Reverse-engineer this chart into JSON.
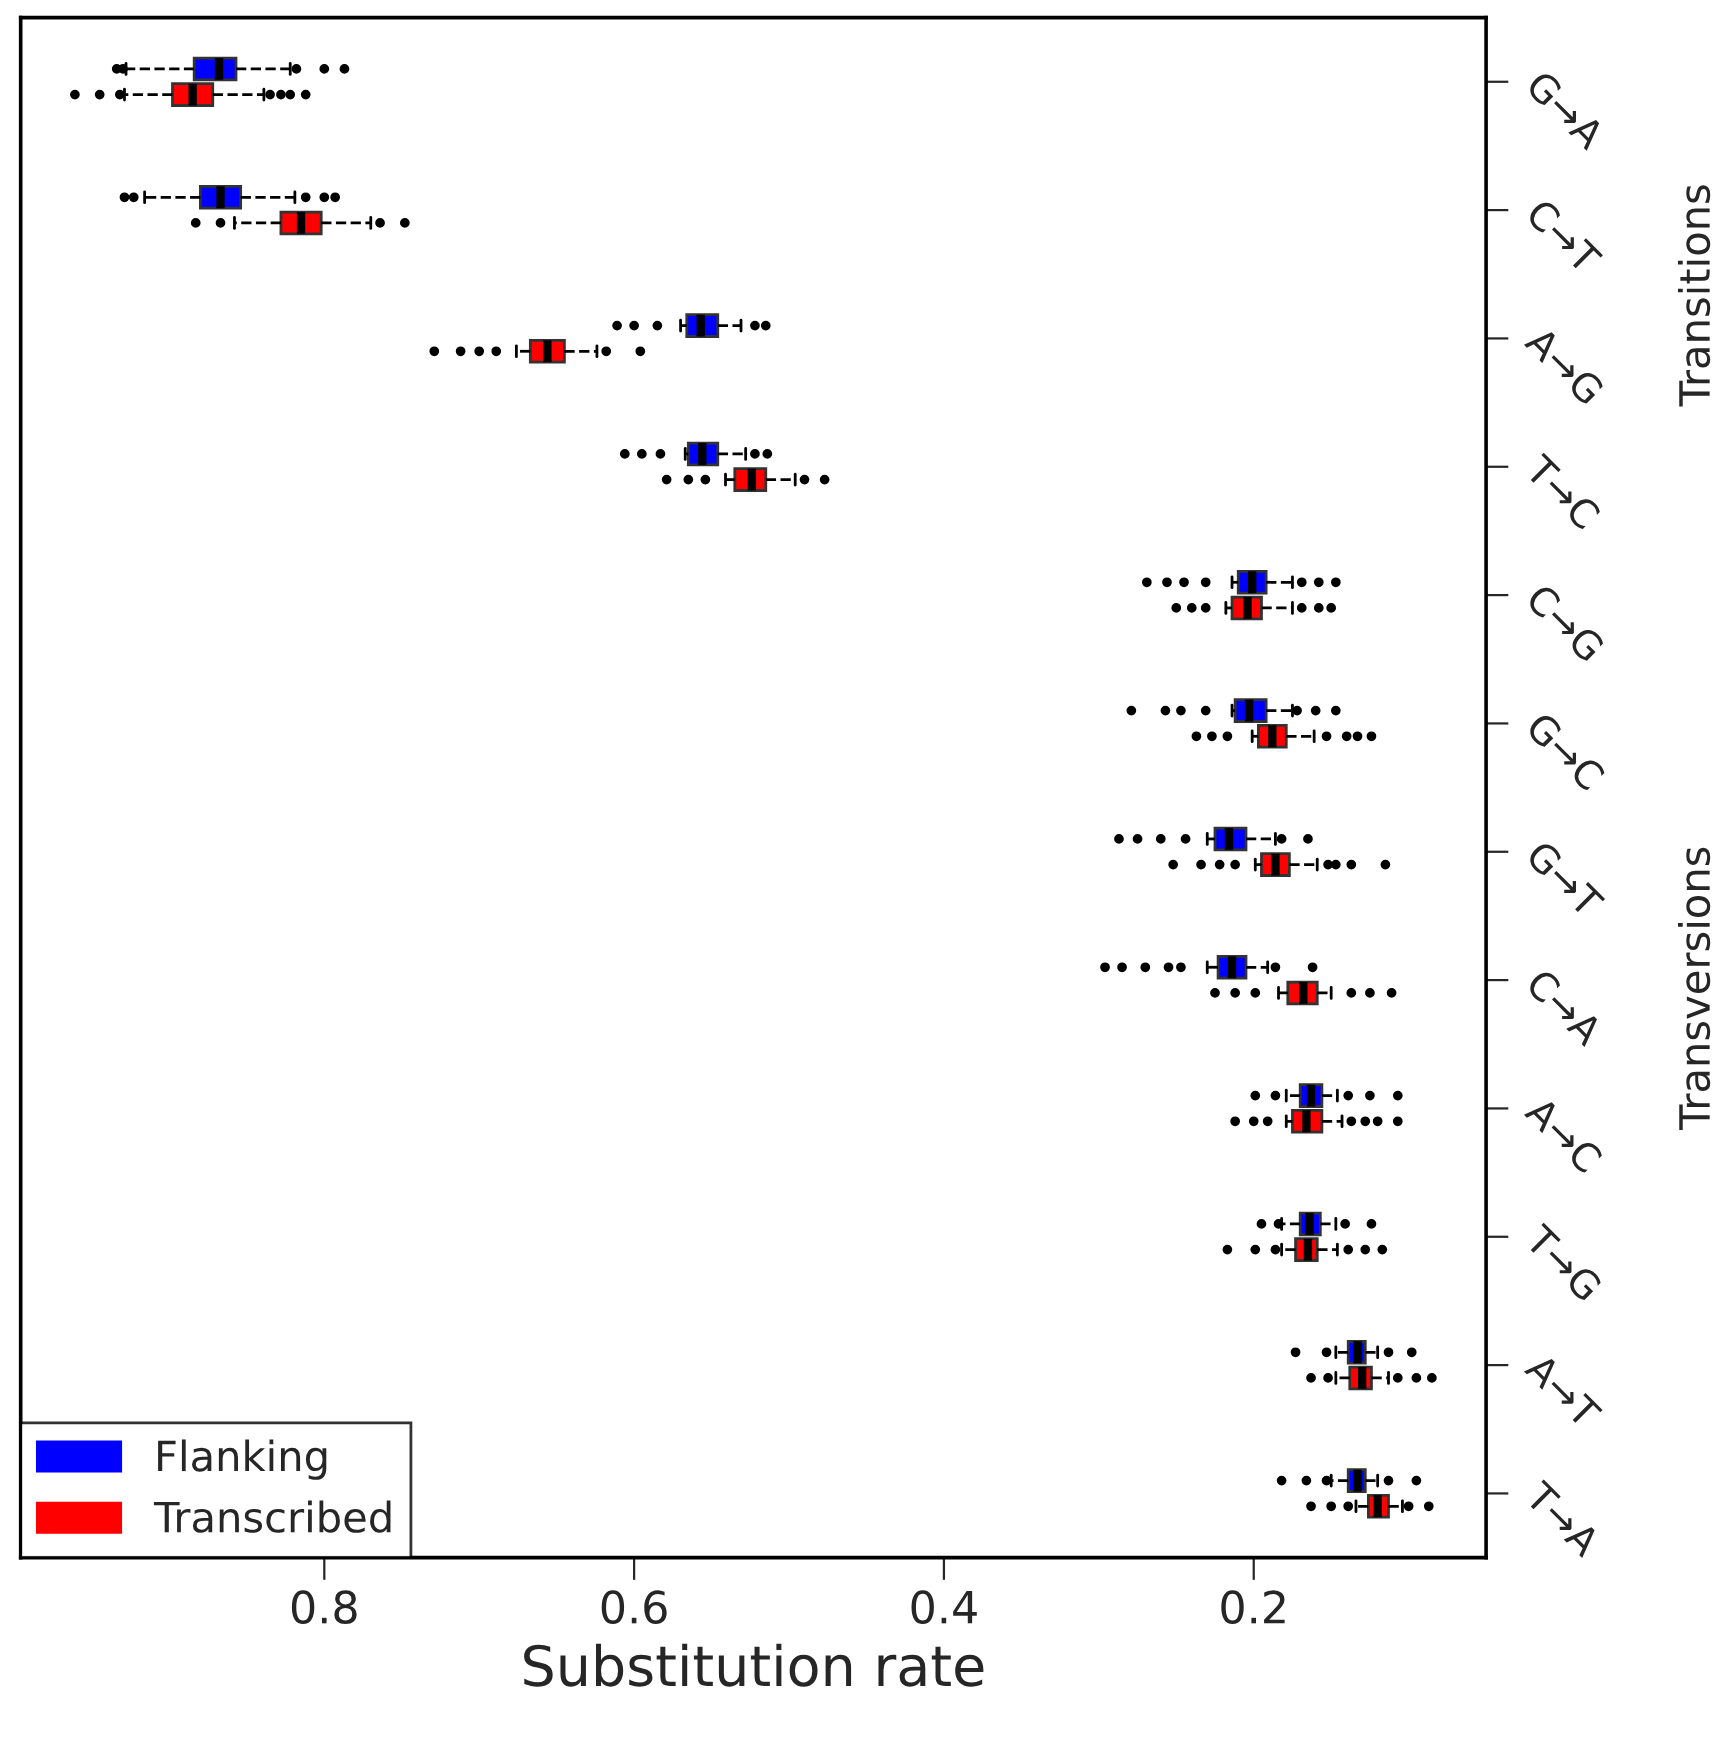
{
  "chart_data": {
    "type": "box",
    "orientation": "horizontal",
    "xlabel": "Substitution rate",
    "categories": [
      "G→A",
      "C→T",
      "A→G",
      "T→C",
      "C→G",
      "G→C",
      "G→T",
      "C→A",
      "A→C",
      "T→G",
      "A→T",
      "T→A"
    ],
    "xlim": [
      0.996,
      0.05
    ],
    "xticks": [
      0.8,
      0.6,
      0.4,
      0.2
    ],
    "grid": false,
    "legend": "bottom left",
    "annotations": [
      "Transitions",
      "Transversions"
    ],
    "series": [
      {
        "name": "Flanking",
        "color": "#0000ff",
        "boxes": [
          {
            "low": 0.822,
            "q1": 0.857,
            "median": 0.868,
            "q3": 0.884,
            "high": 0.928,
            "outliers": [
              0.934,
              0.93,
              0.818,
              0.8,
              0.787
            ]
          },
          {
            "low": 0.819,
            "q1": 0.854,
            "median": 0.867,
            "q3": 0.88,
            "high": 0.916,
            "outliers": [
              0.929,
              0.923,
              0.812,
              0.8,
              0.793
            ]
          },
          {
            "low": 0.531,
            "q1": 0.546,
            "median": 0.557,
            "q3": 0.566,
            "high": 0.57,
            "outliers": [
              0.611,
              0.6,
              0.585,
              0.522,
              0.515
            ]
          },
          {
            "low": 0.528,
            "q1": 0.546,
            "median": 0.556,
            "q3": 0.565,
            "high": 0.567,
            "outliers": [
              0.606,
              0.595,
              0.583,
              0.522,
              0.514
            ]
          },
          {
            "low": 0.175,
            "q1": 0.192,
            "median": 0.201,
            "q3": 0.21,
            "high": 0.214,
            "outliers": [
              0.269,
              0.256,
              0.245,
              0.231,
              0.169,
              0.158,
              0.147
            ]
          },
          {
            "low": 0.175,
            "q1": 0.192,
            "median": 0.203,
            "q3": 0.212,
            "high": 0.214,
            "outliers": [
              0.279,
              0.257,
              0.247,
              0.231,
              0.172,
              0.16,
              0.147
            ]
          },
          {
            "low": 0.186,
            "q1": 0.205,
            "median": 0.216,
            "q3": 0.225,
            "high": 0.23,
            "outliers": [
              0.287,
              0.275,
              0.26,
              0.244,
              0.182,
              0.165
            ]
          },
          {
            "low": 0.191,
            "q1": 0.205,
            "median": 0.214,
            "q3": 0.223,
            "high": 0.23,
            "outliers": [
              0.296,
              0.285,
              0.27,
              0.255,
              0.247,
              0.186,
              0.162
            ]
          },
          {
            "low": 0.146,
            "q1": 0.156,
            "median": 0.163,
            "q3": 0.17,
            "high": 0.179,
            "outliers": [
              0.199,
              0.186,
              0.139,
              0.125,
              0.107
            ]
          },
          {
            "low": 0.147,
            "q1": 0.157,
            "median": 0.164,
            "q3": 0.17,
            "high": 0.182,
            "outliers": [
              0.195,
              0.184,
              0.141,
              0.124
            ]
          },
          {
            "low": 0.12,
            "q1": 0.128,
            "median": 0.133,
            "q3": 0.139,
            "high": 0.147,
            "outliers": [
              0.173,
              0.153,
              0.113,
              0.098
            ]
          },
          {
            "low": 0.12,
            "q1": 0.128,
            "median": 0.133,
            "q3": 0.139,
            "high": 0.15,
            "outliers": [
              0.182,
              0.166,
              0.153,
              0.113,
              0.095
            ]
          }
        ]
      },
      {
        "name": "Transcribed",
        "color": "#ff0000",
        "boxes": [
          {
            "low": 0.839,
            "q1": 0.872,
            "median": 0.885,
            "q3": 0.898,
            "high": 0.929,
            "outliers": [
              0.961,
              0.945,
              0.932,
              0.835,
              0.828,
              0.822,
              0.812
            ]
          },
          {
            "low": 0.77,
            "q1": 0.802,
            "median": 0.815,
            "q3": 0.828,
            "high": 0.858,
            "outliers": [
              0.883,
              0.867,
              0.764,
              0.748
            ]
          },
          {
            "low": 0.624,
            "q1": 0.645,
            "median": 0.656,
            "q3": 0.667,
            "high": 0.676,
            "outliers": [
              0.729,
              0.712,
              0.7,
              0.689,
              0.618,
              0.596
            ]
          },
          {
            "low": 0.496,
            "q1": 0.515,
            "median": 0.524,
            "q3": 0.535,
            "high": 0.541,
            "outliers": [
              0.579,
              0.565,
              0.554,
              0.49,
              0.477
            ]
          },
          {
            "low": 0.175,
            "q1": 0.195,
            "median": 0.204,
            "q3": 0.214,
            "high": 0.218,
            "outliers": [
              0.25,
              0.24,
              0.231,
              0.169,
              0.158,
              0.15
            ]
          },
          {
            "low": 0.161,
            "q1": 0.179,
            "median": 0.188,
            "q3": 0.197,
            "high": 0.201,
            "outliers": [
              0.237,
              0.227,
              0.217,
              0.153,
              0.14,
              0.133,
              0.124
            ]
          },
          {
            "low": 0.159,
            "q1": 0.177,
            "median": 0.186,
            "q3": 0.195,
            "high": 0.199,
            "outliers": [
              0.252,
              0.234,
              0.222,
              0.212,
              0.152,
              0.147,
              0.137,
              0.115
            ]
          },
          {
            "low": 0.15,
            "q1": 0.159,
            "median": 0.168,
            "q3": 0.178,
            "high": 0.184,
            "outliers": [
              0.225,
              0.212,
              0.199,
              0.137,
              0.125,
              0.111
            ]
          },
          {
            "low": 0.143,
            "q1": 0.156,
            "median": 0.166,
            "q3": 0.175,
            "high": 0.179,
            "outliers": [
              0.212,
              0.2,
              0.191,
              0.137,
              0.128,
              0.12,
              0.107
            ]
          },
          {
            "low": 0.146,
            "q1": 0.159,
            "median": 0.165,
            "q3": 0.173,
            "high": 0.182,
            "outliers": [
              0.217,
              0.199,
              0.186,
              0.139,
              0.128,
              0.117
            ]
          },
          {
            "low": 0.113,
            "q1": 0.124,
            "median": 0.13,
            "q3": 0.138,
            "high": 0.147,
            "outliers": [
              0.163,
              0.152,
              0.107,
              0.095,
              0.085
            ]
          },
          {
            "low": 0.104,
            "q1": 0.113,
            "median": 0.12,
            "q3": 0.126,
            "high": 0.134,
            "outliers": [
              0.163,
              0.15,
              0.139,
              0.1,
              0.087
            ]
          }
        ]
      }
    ]
  }
}
